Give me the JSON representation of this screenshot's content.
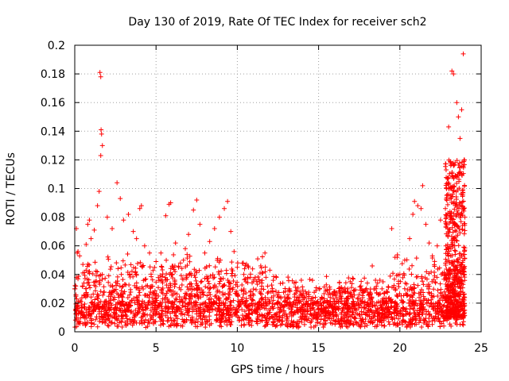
{
  "chart_data": {
    "type": "scatter",
    "title": "Day 130 of 2019, Rate Of TEC Index for receiver sch2",
    "xlabel": "GPS time / hours",
    "ylabel": "ROTI / TECUs",
    "xlim": [
      0,
      25
    ],
    "ylim": [
      0,
      0.2
    ],
    "xticks": [
      0,
      5,
      10,
      15,
      20,
      25
    ],
    "xtick_labels": [
      "0",
      "5",
      "10",
      "15",
      "20",
      "25"
    ],
    "yticks": [
      0,
      0.02,
      0.04,
      0.06,
      0.08,
      0.1,
      0.12,
      0.14,
      0.16,
      0.18,
      0.2
    ],
    "ytick_labels": [
      "0",
      "0.02",
      "0.04",
      "0.06",
      "0.08",
      "0.1",
      "0.12",
      "0.14",
      "0.16",
      "0.18",
      "0.2"
    ],
    "grid": true,
    "marker": "+",
    "color": "#ff0000",
    "series": [
      {
        "points": [
          [
            0.0,
            0.03
          ],
          [
            0.1,
            0.072
          ],
          [
            0.15,
            0.055
          ],
          [
            0.2,
            0.056
          ],
          [
            0.3,
            0.053
          ],
          [
            0.5,
            0.047
          ],
          [
            0.7,
            0.061
          ],
          [
            0.8,
            0.075
          ],
          [
            0.9,
            0.078
          ],
          [
            1.0,
            0.065
          ],
          [
            1.2,
            0.071
          ],
          [
            1.4,
            0.088
          ],
          [
            1.5,
            0.098
          ],
          [
            1.55,
            0.181
          ],
          [
            1.6,
            0.178
          ],
          [
            1.62,
            0.141
          ],
          [
            1.65,
            0.138
          ],
          [
            1.6,
            0.123
          ],
          [
            1.7,
            0.13
          ],
          [
            2.0,
            0.08
          ],
          [
            2.3,
            0.072
          ],
          [
            2.6,
            0.104
          ],
          [
            2.8,
            0.093
          ],
          [
            3.0,
            0.078
          ],
          [
            3.3,
            0.082
          ],
          [
            3.6,
            0.07
          ],
          [
            3.8,
            0.065
          ],
          [
            4.0,
            0.086
          ],
          [
            4.1,
            0.088
          ],
          [
            4.3,
            0.06
          ],
          [
            4.6,
            0.055
          ],
          [
            5.0,
            0.049
          ],
          [
            5.3,
            0.055
          ],
          [
            5.6,
            0.081
          ],
          [
            5.8,
            0.089
          ],
          [
            5.9,
            0.09
          ],
          [
            6.2,
            0.062
          ],
          [
            6.5,
            0.048
          ],
          [
            6.8,
            0.058
          ],
          [
            7.0,
            0.068
          ],
          [
            7.3,
            0.085
          ],
          [
            7.5,
            0.092
          ],
          [
            7.7,
            0.075
          ],
          [
            8.0,
            0.055
          ],
          [
            8.3,
            0.063
          ],
          [
            8.6,
            0.072
          ],
          [
            8.9,
            0.08
          ],
          [
            9.2,
            0.086
          ],
          [
            9.4,
            0.091
          ],
          [
            9.6,
            0.07
          ],
          [
            9.8,
            0.056
          ],
          [
            10.0,
            0.045
          ],
          [
            10.4,
            0.04
          ],
          [
            10.8,
            0.038
          ],
          [
            11.1,
            0.038
          ],
          [
            11.4,
            0.041
          ],
          [
            11.7,
            0.055
          ],
          [
            12.0,
            0.043
          ],
          [
            12.4,
            0.038
          ],
          [
            12.8,
            0.034
          ],
          [
            13.2,
            0.03
          ],
          [
            13.6,
            0.027
          ],
          [
            14.0,
            0.025
          ],
          [
            14.4,
            0.026
          ],
          [
            14.8,
            0.024
          ],
          [
            15.2,
            0.024
          ],
          [
            15.6,
            0.026
          ],
          [
            16.0,
            0.028
          ],
          [
            16.4,
            0.031
          ],
          [
            16.8,
            0.03
          ],
          [
            17.2,
            0.029
          ],
          [
            17.6,
            0.032
          ],
          [
            18.0,
            0.034
          ],
          [
            18.3,
            0.046
          ],
          [
            18.5,
            0.036
          ],
          [
            18.9,
            0.03
          ],
          [
            19.3,
            0.031
          ],
          [
            19.5,
            0.072
          ],
          [
            19.7,
            0.052
          ],
          [
            20.0,
            0.04
          ],
          [
            20.3,
            0.05
          ],
          [
            20.6,
            0.065
          ],
          [
            20.8,
            0.082
          ],
          [
            20.9,
            0.091
          ],
          [
            21.1,
            0.088
          ],
          [
            21.3,
            0.086
          ],
          [
            21.4,
            0.102
          ],
          [
            21.6,
            0.075
          ],
          [
            21.8,
            0.062
          ],
          [
            22.0,
            0.053
          ],
          [
            22.3,
            0.06
          ],
          [
            22.5,
            0.078
          ],
          [
            22.8,
            0.086
          ],
          [
            23.0,
            0.143
          ],
          [
            23.1,
            0.1
          ],
          [
            23.2,
            0.182
          ],
          [
            23.3,
            0.18
          ],
          [
            23.4,
            0.118
          ],
          [
            23.5,
            0.16
          ],
          [
            23.6,
            0.15
          ],
          [
            23.7,
            0.135
          ],
          [
            23.8,
            0.155
          ],
          [
            23.9,
            0.194
          ],
          [
            23.95,
            0.12
          ],
          [
            24.0,
            0.08
          ]
        ]
      }
    ]
  }
}
